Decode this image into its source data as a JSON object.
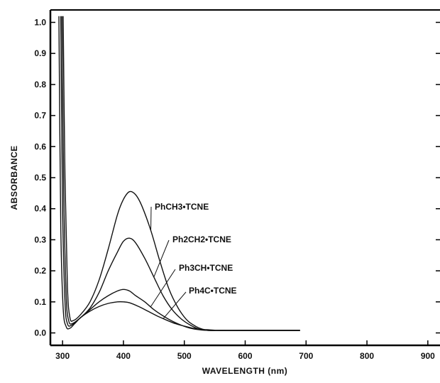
{
  "chart_data": {
    "type": "line",
    "title": "",
    "xlabel": "WAVELENGTH (nm)",
    "ylabel": "ABSORBANCE",
    "xlim": [
      280,
      920
    ],
    "ylim": [
      -0.04,
      1.04
    ],
    "x_ticks": [
      300,
      400,
      500,
      600,
      700,
      800,
      900
    ],
    "x_tick_labels": [
      "300",
      "400",
      "500",
      "600",
      "700",
      "800",
      "900"
    ],
    "y_ticks": [
      0.0,
      0.1,
      0.2,
      0.3,
      0.4,
      0.5,
      0.6,
      0.7,
      0.8,
      0.9,
      1.0
    ],
    "y_tick_labels": [
      "0.0",
      "0.1",
      "0.2",
      "0.3",
      "0.4",
      "0.5",
      "0.6",
      "0.7",
      "0.8",
      "0.9",
      "1.0"
    ],
    "grid": false,
    "legend": "none",
    "series": [
      {
        "name": "PhCH3•TCNE",
        "x": [
          301,
          304,
          308,
          312,
          318,
          330,
          345,
          360,
          375,
          390,
          400,
          410,
          420,
          430,
          445,
          460,
          475,
          490,
          505,
          520,
          530,
          540,
          560,
          600,
          650,
          690
        ],
        "y": [
          1.02,
          0.5,
          0.15,
          0.05,
          0.04,
          0.06,
          0.1,
          0.17,
          0.27,
          0.38,
          0.43,
          0.455,
          0.445,
          0.41,
          0.33,
          0.23,
          0.14,
          0.08,
          0.04,
          0.02,
          0.012,
          0.01,
          0.008,
          0.008,
          0.008,
          0.008
        ]
      },
      {
        "name": "Ph2CH2•TCNE",
        "x": [
          299,
          302,
          306,
          310,
          316,
          330,
          345,
          360,
          375,
          390,
          400,
          410,
          420,
          435,
          450,
          465,
          480,
          495,
          510,
          525,
          540,
          560,
          600,
          690
        ],
        "y": [
          1.02,
          0.45,
          0.12,
          0.04,
          0.03,
          0.05,
          0.08,
          0.13,
          0.2,
          0.26,
          0.295,
          0.305,
          0.29,
          0.24,
          0.18,
          0.12,
          0.075,
          0.045,
          0.025,
          0.012,
          0.008,
          0.008,
          0.008,
          0.008
        ]
      },
      {
        "name": "Ph3CH•TCNE",
        "x": [
          297,
          300,
          304,
          308,
          315,
          330,
          345,
          360,
          375,
          390,
          400,
          410,
          420,
          435,
          450,
          465,
          480,
          495,
          510,
          525,
          540,
          560,
          600,
          690
        ],
        "y": [
          1.02,
          0.4,
          0.1,
          0.03,
          0.025,
          0.05,
          0.075,
          0.1,
          0.12,
          0.135,
          0.14,
          0.135,
          0.12,
          0.1,
          0.075,
          0.055,
          0.038,
          0.025,
          0.015,
          0.01,
          0.008,
          0.008,
          0.008,
          0.008
        ]
      },
      {
        "name": "Ph4C•TCNE",
        "x": [
          294,
          297,
          301,
          306,
          312,
          320,
          330,
          345,
          360,
          375,
          390,
          400,
          410,
          425,
          440,
          455,
          470,
          485,
          500,
          515,
          530,
          545,
          560,
          600,
          690
        ],
        "y": [
          1.02,
          0.35,
          0.08,
          0.02,
          0.015,
          0.03,
          0.05,
          0.07,
          0.085,
          0.095,
          0.1,
          0.1,
          0.097,
          0.085,
          0.07,
          0.055,
          0.042,
          0.03,
          0.022,
          0.015,
          0.01,
          0.008,
          0.008,
          0.008,
          0.008
        ]
      }
    ],
    "annotations": [
      {
        "text": "PhCH3•TCNE",
        "series": 0
      },
      {
        "text": "Ph2CH2•TCNE",
        "series": 1
      },
      {
        "text": "Ph3CH•TCNE",
        "series": 2
      },
      {
        "text": "Ph4C•TCNE",
        "series": 3
      }
    ]
  }
}
